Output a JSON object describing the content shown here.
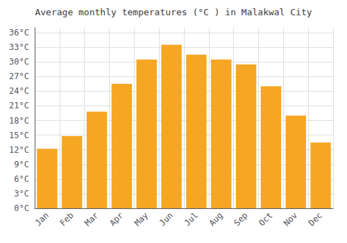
{
  "chart_data": {
    "type": "bar",
    "title": "Average monthly temperatures (°C ) in Malakwal City",
    "categories": [
      "Jan",
      "Feb",
      "Mar",
      "Apr",
      "May",
      "Jun",
      "Jul",
      "Aug",
      "Sep",
      "Oct",
      "Nov",
      "Dec"
    ],
    "values": [
      12.2,
      14.8,
      19.8,
      25.5,
      30.5,
      33.5,
      31.5,
      30.5,
      29.5,
      25.0,
      19.0,
      13.5
    ],
    "color": "#F5A623",
    "ylim": [
      0,
      37
    ],
    "yticks": [
      {
        "value": 0,
        "label": "0°C"
      },
      {
        "value": 3,
        "label": "3°C"
      },
      {
        "value": 6,
        "label": "6°C"
      },
      {
        "value": 9,
        "label": "9°C"
      },
      {
        "value": 12,
        "label": "12°C"
      },
      {
        "value": 15,
        "label": "15°C"
      },
      {
        "value": 18,
        "label": "18°C"
      },
      {
        "value": 21,
        "label": "21°C"
      },
      {
        "value": 24,
        "label": "24°C"
      },
      {
        "value": 27,
        "label": "27°C"
      },
      {
        "value": 30,
        "label": "30°C"
      },
      {
        "value": 33,
        "label": "33°C"
      },
      {
        "value": 36,
        "label": "36°C"
      }
    ],
    "grid": true
  }
}
